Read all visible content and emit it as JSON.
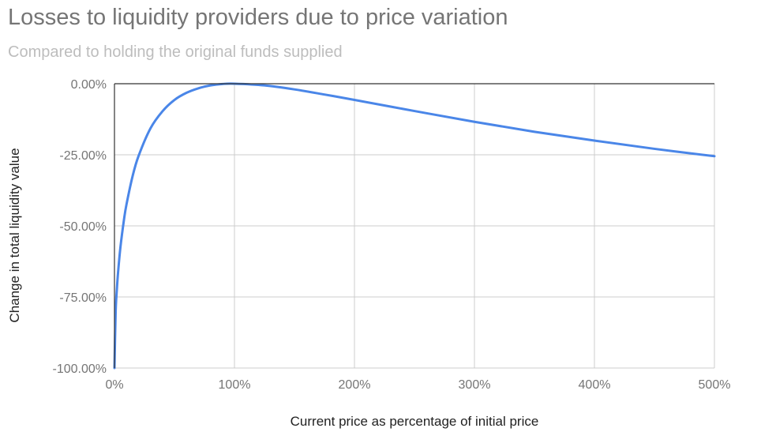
{
  "chart_data": {
    "type": "line",
    "title": "Losses to liquidity providers due to price variation",
    "subtitle": "Compared to holding the original funds supplied",
    "xlabel": "Current price as percentage of initial price",
    "ylabel": "Change in total liquidity value",
    "xlim": [
      0,
      500
    ],
    "ylim": [
      -100,
      0
    ],
    "x_ticks": [
      0,
      100,
      200,
      300,
      400,
      500
    ],
    "x_tick_labels": [
      "0%",
      "100%",
      "200%",
      "300%",
      "400%",
      "500%"
    ],
    "y_ticks": [
      0,
      -25,
      -50,
      -75,
      -100
    ],
    "y_tick_labels": [
      "0.00%",
      "-25.00%",
      "-50.00%",
      "-75.00%",
      "-100.00%"
    ],
    "grid": true,
    "legend": "none",
    "series": [
      {
        "color": "#4a86e8",
        "x": [
          0,
          1,
          2,
          3,
          5,
          8,
          10,
          15,
          20,
          30,
          40,
          50,
          60,
          70,
          80,
          90,
          100,
          125,
          150,
          175,
          200,
          250,
          300,
          350,
          400,
          450,
          500
        ],
        "y": [
          -100,
          -80.2,
          -72.3,
          -66.4,
          -57.4,
          -47.6,
          -42.5,
          -32.7,
          -25.5,
          -15.7,
          -9.7,
          -5.7,
          -3.2,
          -1.6,
          -0.6,
          -0.1,
          0,
          -0.6,
          -2.0,
          -3.8,
          -5.7,
          -9.6,
          -13.4,
          -16.9,
          -20.0,
          -22.9,
          -25.5
        ]
      }
    ]
  }
}
